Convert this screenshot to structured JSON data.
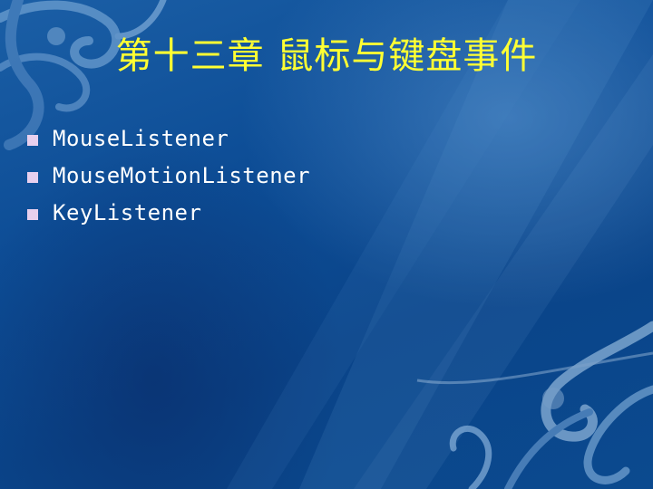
{
  "slide": {
    "title": "第十三章 鼠标与键盘事件",
    "bullets": [
      "MouseListener",
      "MouseMotionListener",
      "KeyListener"
    ]
  },
  "colors": {
    "title": "#ffff33",
    "text": "#ffffff",
    "bullet": "#e8d0ee",
    "background": "#0d4d96"
  }
}
